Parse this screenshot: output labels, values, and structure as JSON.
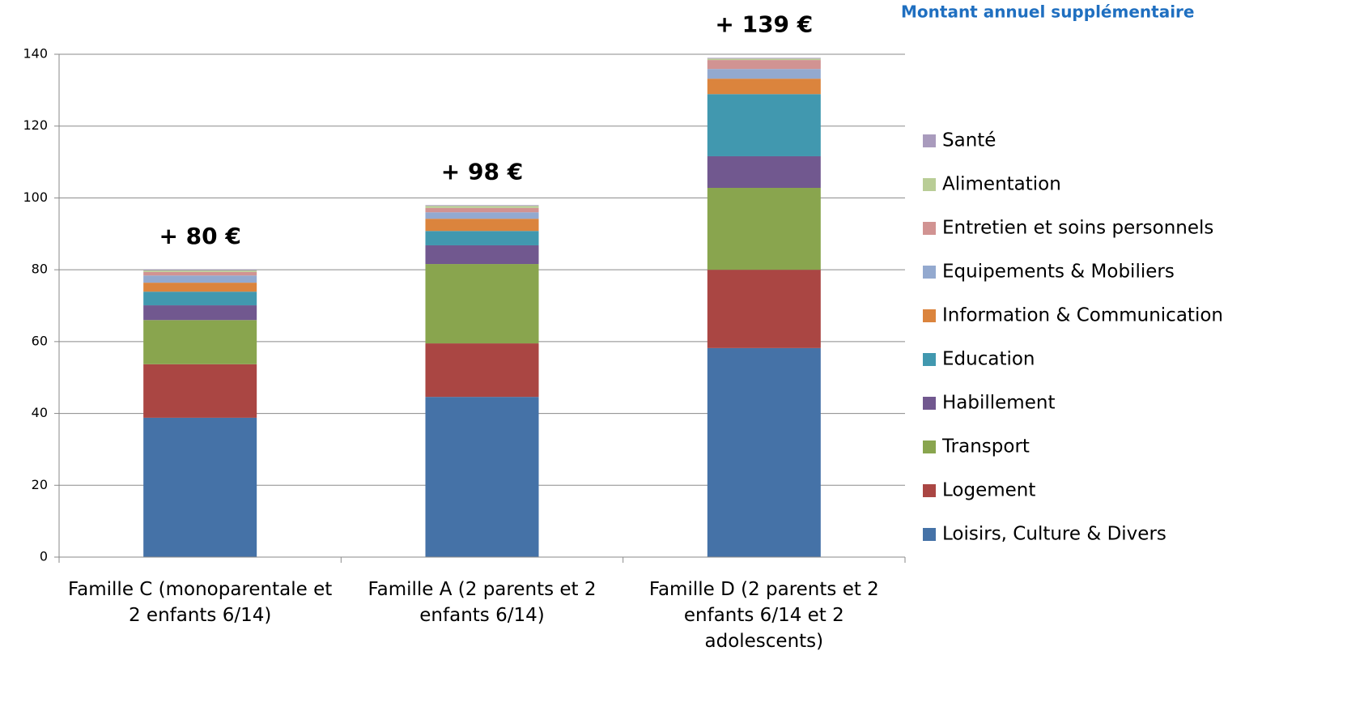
{
  "chart_data": {
    "type": "stacked_bar",
    "title": "Montant annuel supplémentaire",
    "categories": [
      "Famille C (monoparentale et 2 enfants 6/14)",
      "Famille A (2 parents et 2 enfants 6/14)",
      "Famille D (2 parents et 2 enfants 6/14 et 2 adolescents)"
    ],
    "total_labels": [
      "+ 80 €",
      "+ 98 €",
      "+ 139 €"
    ],
    "series": [
      {
        "name": "Loisirs, Culture & Divers",
        "color": "#4572a7",
        "values": [
          38.8,
          44.6,
          58.2
        ]
      },
      {
        "name": "Logement",
        "color": "#aa4643",
        "values": [
          14.9,
          14.9,
          21.8
        ]
      },
      {
        "name": "Transport",
        "color": "#89a54e",
        "values": [
          12.3,
          22.1,
          22.8
        ]
      },
      {
        "name": "Habillement",
        "color": "#71588f",
        "values": [
          4.1,
          5.2,
          8.8
        ]
      },
      {
        "name": "Education",
        "color": "#4198af",
        "values": [
          3.8,
          4.0,
          17.3
        ]
      },
      {
        "name": "Information & Communication",
        "color": "#db843d",
        "values": [
          2.5,
          3.4,
          4.3
        ]
      },
      {
        "name": "Equipements & Mobiliers",
        "color": "#93a9cf",
        "values": [
          2.0,
          1.8,
          2.7
        ]
      },
      {
        "name": "Entretien et soins personnels",
        "color": "#d19392",
        "values": [
          1.0,
          1.2,
          2.5
        ]
      },
      {
        "name": "Alimentation",
        "color": "#b9cd96",
        "values": [
          0.4,
          0.6,
          0.4
        ]
      },
      {
        "name": "Santé",
        "color": "#a99bbd",
        "values": [
          0.2,
          0.2,
          0.2
        ]
      }
    ],
    "ylim": [
      0,
      140
    ],
    "yticks": [
      0,
      20,
      40,
      60,
      80,
      100,
      120,
      140
    ],
    "grid": true,
    "legend": "right"
  }
}
